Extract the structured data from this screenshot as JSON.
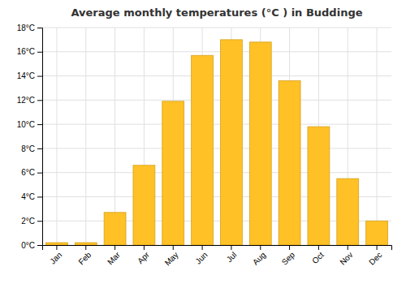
{
  "chart_data": {
    "type": "bar",
    "title": "Average monthly temperatures (°C ) in Buddinge",
    "categories": [
      "Jan",
      "Feb",
      "Mar",
      "Apr",
      "May",
      "Jun",
      "Jul",
      "Aug",
      "Sep",
      "Oct",
      "Nov",
      "Dec"
    ],
    "values": [
      0.2,
      0.2,
      2.7,
      6.6,
      11.9,
      15.7,
      17.0,
      16.8,
      13.6,
      9.8,
      5.5,
      2.0
    ],
    "color": "#FFC125",
    "ylim": [
      0,
      18
    ],
    "yticks": [
      {
        "value": 0,
        "label": "0°C"
      },
      {
        "value": 2,
        "label": "2°C"
      },
      {
        "value": 4,
        "label": "4°C"
      },
      {
        "value": 6,
        "label": "6°C"
      },
      {
        "value": 8,
        "label": "8°C"
      },
      {
        "value": 10,
        "label": "10°C"
      },
      {
        "value": 12,
        "label": "12°C"
      },
      {
        "value": 14,
        "label": "14°C"
      },
      {
        "value": 16,
        "label": "16°C"
      },
      {
        "value": 18,
        "label": "18°C"
      }
    ],
    "grid": true
  }
}
